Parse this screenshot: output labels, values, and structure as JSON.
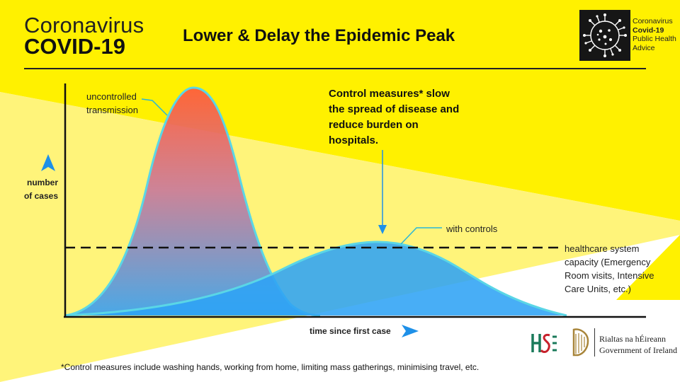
{
  "brand": {
    "line1": "Coronavirus",
    "line2": "COVID-19"
  },
  "title": "Lower & Delay the Epidemic Peak",
  "badge": {
    "line1": "Coronavirus",
    "line2": "Covid-19",
    "line3": "Public Health",
    "line4": "Advice",
    "icon": "virus-icon"
  },
  "annotations": {
    "uncontrolled": "uncontrolled transmission",
    "with_controls": "with controls",
    "capacity": "healthcare system capacity (Emergency Room visits, Intensive Care Units, etc.)",
    "callout": "Control measures* slow the spread of disease and reduce burden on hospitals."
  },
  "axes": {
    "y_label": "number of cases",
    "x_label": "time since first case"
  },
  "footnote": "*Control measures include washing hands, working from home, limiting mass gatherings, minimising travel, etc.",
  "logos": {
    "hse": "HSE",
    "gov_line1": "Rialtas na hÉireann",
    "gov_line2": "Government of Ireland"
  },
  "colors": {
    "yellow": "#fff100",
    "pale_yellow": "#fff47a",
    "uncontrolled_top": "#ff5a3c",
    "uncontrolled_bottom": "#3aa2f0",
    "controlled_fill": "#2fa3f5",
    "curve_outline": "#5ad6e6",
    "arrow_blue": "#1e90e8"
  },
  "chart_data": {
    "type": "area",
    "x": [
      0,
      5,
      10,
      15,
      20,
      25,
      30,
      35,
      40,
      45,
      50,
      55,
      60,
      65,
      70,
      75,
      80,
      85,
      90,
      95,
      100
    ],
    "series": [
      {
        "name": "uncontrolled transmission",
        "values": [
          0,
          1,
          3,
          8,
          20,
          45,
          80,
          100,
          85,
          50,
          20,
          6,
          1,
          0,
          0,
          0,
          0,
          0,
          0,
          0,
          0
        ]
      },
      {
        "name": "with controls",
        "values": [
          0,
          1,
          2,
          3,
          5,
          8,
          12,
          17,
          22,
          28,
          33,
          36,
          34,
          30,
          24,
          17,
          10,
          5,
          2,
          0,
          0
        ]
      }
    ],
    "capacity_line": 33,
    "ylim": [
      0,
      100
    ]
  }
}
